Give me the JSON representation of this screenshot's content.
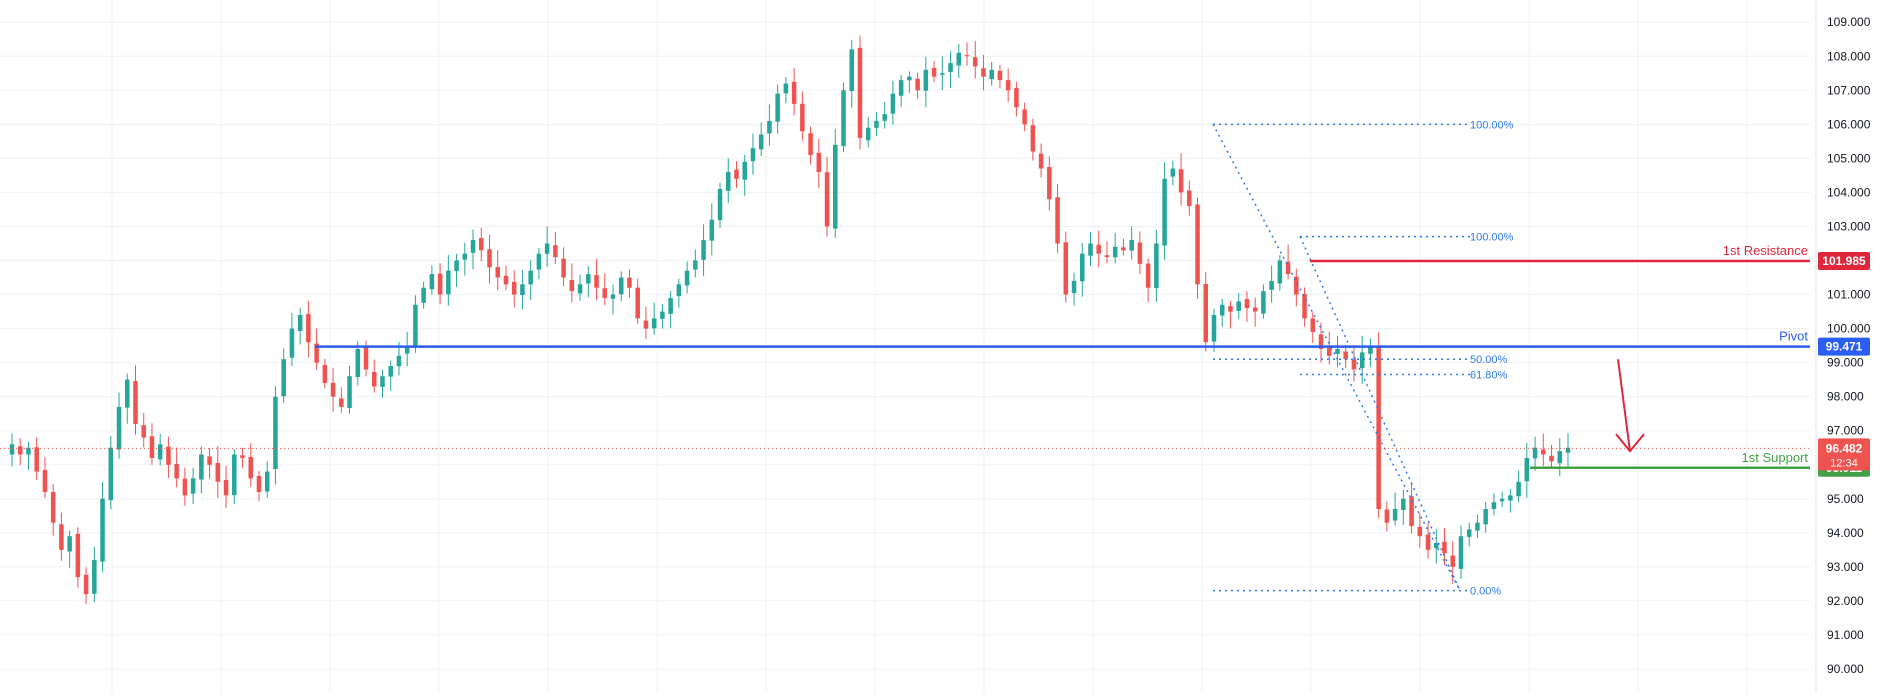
{
  "colors": {
    "up": "#26a69a",
    "down": "#ef5350",
    "grid": "#eef0f3",
    "axis_text": "#131722",
    "resistance": "#e0263a",
    "pivot": "#2a5df0",
    "support": "#43a047",
    "fib": "#2f7be8",
    "arrow": "#e0263a",
    "current": "#ef5350"
  },
  "chart_data": {
    "type": "candlestick",
    "title": "",
    "ylim": [
      89.5,
      109.3
    ],
    "grid": true,
    "y_ticks": [
      "90.000",
      "91.000",
      "92.000",
      "93.000",
      "94.000",
      "95.000",
      "96.000",
      "97.000",
      "98.000",
      "99.000",
      "100.000",
      "101.000",
      "102.000",
      "103.000",
      "104.000",
      "105.000",
      "106.000",
      "107.000",
      "108.000",
      "109.000"
    ],
    "close_path": [
      96.6,
      96.3,
      96.5,
      95.8,
      95.2,
      94.3,
      93.5,
      93.9,
      92.7,
      92.2,
      93.2,
      95.0,
      96.5,
      97.7,
      98.5,
      97.2,
      96.8,
      96.2,
      96.6,
      96.0,
      95.6,
      95.1,
      95.6,
      96.3,
      96.0,
      95.5,
      95.1,
      96.3,
      96.2,
      95.6,
      95.2,
      95.8,
      98.0,
      99.1,
      100.0,
      100.4,
      99.6,
      99.0,
      98.4,
      98.0,
      97.7,
      98.6,
      99.4,
      98.8,
      98.3,
      98.6,
      98.9,
      99.2,
      99.5,
      100.7,
      101.2,
      101.6,
      101.0,
      101.7,
      102.0,
      102.2,
      102.6,
      102.3,
      101.8,
      101.5,
      101.3,
      101.0,
      101.3,
      101.7,
      102.2,
      102.5,
      102.1,
      101.5,
      101.1,
      101.3,
      101.6,
      101.2,
      100.9,
      101.0,
      101.5,
      101.2,
      100.3,
      100.0,
      100.3,
      100.5,
      100.9,
      101.3,
      101.7,
      102.0,
      102.6,
      103.2,
      104.1,
      104.6,
      104.4,
      104.9,
      105.3,
      105.7,
      106.1,
      106.9,
      107.2,
      106.6,
      105.8,
      105.1,
      104.6,
      103.0,
      105.4,
      107.0,
      108.2,
      105.6,
      105.9,
      106.1,
      106.3,
      106.9,
      107.3,
      107.4,
      107.0,
      107.6,
      107.4,
      107.5,
      107.8,
      108.1,
      108.0,
      107.7,
      107.4,
      107.6,
      107.3,
      107.0,
      106.5,
      106.0,
      105.2,
      104.7,
      103.8,
      102.5,
      101.0,
      101.4,
      102.2,
      102.5,
      102.2,
      102.1,
      102.4,
      102.3,
      102.6,
      101.9,
      101.2,
      102.5,
      104.4,
      104.7,
      104.0,
      103.6,
      101.3,
      99.6,
      100.4,
      100.7,
      100.5,
      100.8,
      100.6,
      100.5,
      101.1,
      101.4,
      102.0,
      101.6,
      101.0,
      100.3,
      99.9,
      99.4,
      99.2,
      99.4,
      99.1,
      98.8,
      99.3,
      99.5,
      94.7,
      94.3,
      94.7,
      95.0,
      94.2,
      93.9,
      93.5,
      93.7,
      93.4,
      93.0,
      93.9,
      94.1,
      94.3,
      94.7,
      94.9,
      95.0,
      95.1,
      95.5,
      96.2,
      96.5,
      96.3,
      96.1,
      96.4,
      96.5
    ],
    "horizontal_levels": [
      {
        "name": "resistance",
        "label": "1st Resistance",
        "value": 101.985,
        "badge": "101.985"
      },
      {
        "name": "pivot",
        "label": "Pivot",
        "value": 99.471,
        "badge": "99.471"
      },
      {
        "name": "support",
        "label": "1st Support",
        "value": 95.911,
        "badge": "95.911"
      }
    ],
    "current_price": {
      "value": 96.482,
      "badge": "96.482",
      "countdown": "12:34"
    },
    "fib_levels": [
      {
        "label": "100.00%",
        "value": 106.0
      },
      {
        "label": "100.00%",
        "value": 102.7
      },
      {
        "label": "50.00%",
        "value": 99.1
      },
      {
        "label": "61.80%",
        "value": 98.65
      },
      {
        "label": "0.00%",
        "value": 92.3
      }
    ]
  }
}
